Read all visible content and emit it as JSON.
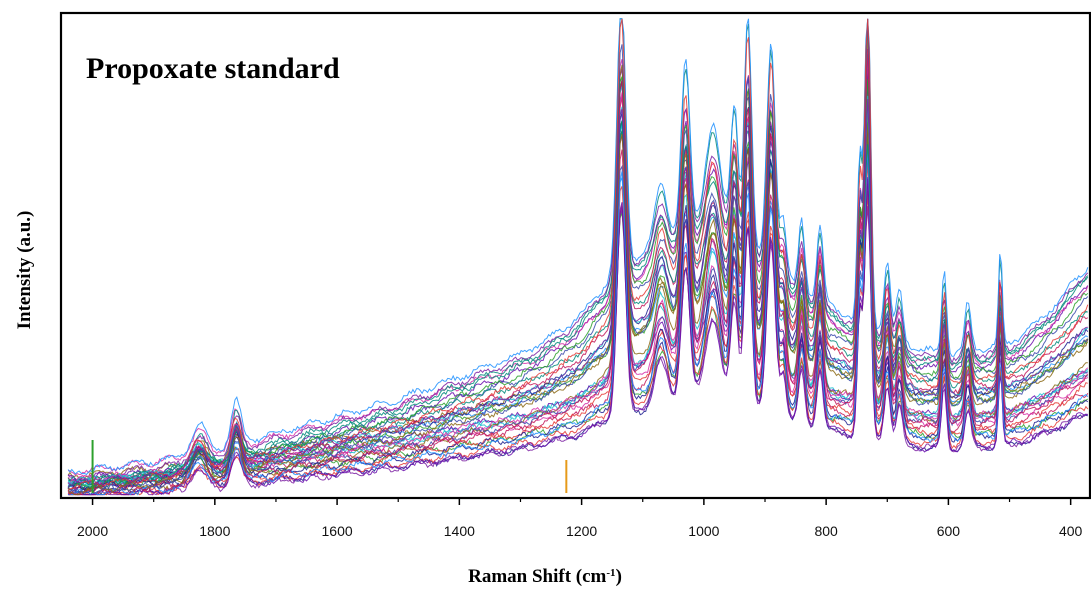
{
  "chart_data": {
    "type": "line",
    "title": "Propoxate standard",
    "xlabel_main": "Raman Shift (cm",
    "xlabel_sup": "-1",
    "xlabel_close": ")",
    "ylabel": "Intensity (a.u.)",
    "x_reversed": true,
    "xlim": [
      2050,
      370
    ],
    "ylim": [
      0,
      100
    ],
    "x_ticks": [
      2000,
      1800,
      1600,
      1400,
      1200,
      1000,
      800,
      600,
      400
    ],
    "x_tick_labels": [
      "2000",
      "1800",
      "1600",
      "1400",
      "1200",
      "1000",
      "800",
      "600",
      "400"
    ],
    "y_ticks_shown": false,
    "legend": "none",
    "grid": false,
    "series_count_depicted": "many overlaid spectra (multicolored)",
    "colors": [
      "#1f1f8f",
      "#6a0dad",
      "#d62ea8",
      "#1e90ff",
      "#2ca02c",
      "#17becf",
      "#c2185b",
      "#8b6914",
      "#3949ab",
      "#00897b",
      "#e53935",
      "#7b1fa2"
    ],
    "reference": {
      "description_baseline_points": [
        [
          2040,
          3
        ],
        [
          1900,
          5
        ],
        [
          1800,
          7
        ],
        [
          1700,
          10
        ],
        [
          1600,
          13
        ],
        [
          1500,
          16
        ],
        [
          1400,
          20
        ],
        [
          1300,
          24
        ],
        [
          1250,
          27
        ],
        [
          1200,
          31
        ],
        [
          1150,
          38
        ],
        [
          1100,
          42
        ],
        [
          1050,
          45
        ],
        [
          1000,
          47
        ],
        [
          950,
          45
        ],
        [
          900,
          40
        ],
        [
          850,
          36
        ],
        [
          800,
          33
        ],
        [
          750,
          30
        ],
        [
          700,
          28
        ],
        [
          650,
          25
        ],
        [
          600,
          24
        ],
        [
          550,
          25
        ],
        [
          500,
          26
        ],
        [
          450,
          30
        ],
        [
          400,
          36
        ],
        [
          370,
          40
        ]
      ],
      "peaks": [
        {
          "x": 1826,
          "h": 6,
          "w": 12
        },
        {
          "x": 1765,
          "h": 9,
          "w": 8
        },
        {
          "x": 1135,
          "h": 58,
          "w": 7
        },
        {
          "x": 1070,
          "h": 12,
          "w": 10
        },
        {
          "x": 1030,
          "h": 36,
          "w": 7
        },
        {
          "x": 985,
          "h": 22,
          "w": 12
        },
        {
          "x": 950,
          "h": 28,
          "w": 6
        },
        {
          "x": 928,
          "h": 50,
          "w": 6
        },
        {
          "x": 890,
          "h": 48,
          "w": 7
        },
        {
          "x": 870,
          "h": 12,
          "w": 5
        },
        {
          "x": 840,
          "h": 15,
          "w": 5
        },
        {
          "x": 810,
          "h": 16,
          "w": 5
        },
        {
          "x": 745,
          "h": 34,
          "w": 4
        },
        {
          "x": 732,
          "h": 70,
          "w": 5
        },
        {
          "x": 700,
          "h": 15,
          "w": 5
        },
        {
          "x": 680,
          "h": 10,
          "w": 5
        },
        {
          "x": 607,
          "h": 18,
          "w": 4
        },
        {
          "x": 568,
          "h": 10,
          "w": 5
        },
        {
          "x": 515,
          "h": 20,
          "w": 3
        }
      ]
    }
  }
}
